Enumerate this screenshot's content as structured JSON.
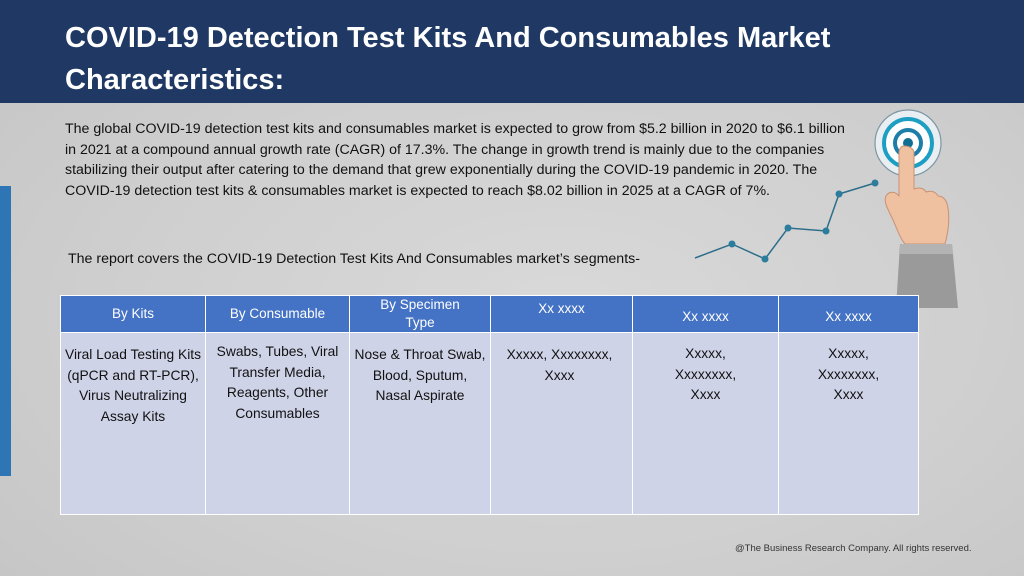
{
  "title": "COVID-19 Detection Test Kits And Consumables Market Characteristics:",
  "intro": "The global COVID-19 detection test kits and consumables market is expected to grow from $5.2 billion in 2020 to $6.1 billion in 2021 at a compound annual growth rate (CAGR) of 17.3%. The change in growth trend is mainly due to the companies stabilizing their output after catering to the demand that grew exponentially during the COVID-19 pandemic in 2020. The COVID-19 detection test kits & consumables market is expected to reach $8.02 billion in 2025 at a CAGR of 7%.",
  "segments_line": "The report covers the COVID-19 Detection Test Kits And Consumables market’s segments-",
  "table": {
    "headers": [
      "By Kits",
      "By Consumable",
      "By Specimen Type",
      "Xx xxxx",
      "Xx xxxx",
      "Xx xxxx"
    ],
    "cells": [
      "Viral Load Testing Kits (qPCR and RT-PCR), Virus Neutralizing Assay Kits",
      "Swabs, Tubes, Viral Transfer Media, Reagents, Other Consumables",
      "Nose & Throat Swab, Blood, Sputum, Nasal Aspirate",
      "Xxxxx, Xxxxxxxx, Xxxx",
      "Xxxxx, Xxxxxxxx, Xxxx",
      "Xxxxx, Xxxxxxxx, Xxxx"
    ]
  },
  "footer": "@The Business Research Company. All rights reserved.",
  "colors": {
    "title_bar": "#1f3864",
    "header": "#4472c4",
    "accent": "#2e75b6",
    "table_body": "#cfd3e8"
  },
  "graphic": {
    "icons": [
      "target-icon",
      "pointing-hand-icon",
      "growth-line-icon"
    ]
  }
}
